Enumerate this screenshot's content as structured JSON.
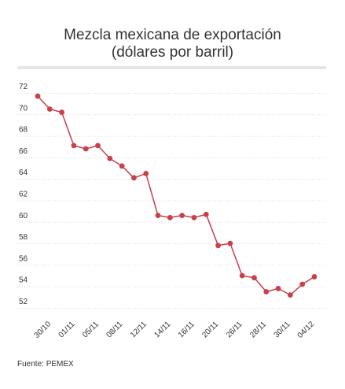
{
  "title": {
    "line1": "Mezcla mexicana de exportación",
    "line2": "(dólares por barril)"
  },
  "source": "Fuente: PEMEX",
  "chart_data": {
    "type": "line",
    "title": "Mezcla mexicana de exportación (dólares por barril)",
    "xlabel": "",
    "ylabel": "",
    "ylim": [
      52,
      72
    ],
    "yticks": [
      52,
      54,
      56,
      58,
      60,
      62,
      64,
      66,
      68,
      70,
      72
    ],
    "xtick_labels": [
      "30/10",
      "01/11",
      "05/11",
      "08/11",
      "12/11",
      "14/11",
      "16/11",
      "20/11",
      "26/11",
      "28/11",
      "30/11",
      "04/12"
    ],
    "grid": true,
    "line_color": "#c8404a",
    "series": [
      {
        "values": [
          71.7,
          70.5,
          70.2,
          67.1,
          66.8,
          67.1,
          65.9,
          65.2,
          64.1,
          64.5,
          60.6,
          60.4,
          60.6,
          60.4,
          60.7,
          57.8,
          58.0,
          55.0,
          54.8,
          53.5,
          53.8,
          53.2,
          54.2,
          54.9
        ]
      }
    ]
  }
}
